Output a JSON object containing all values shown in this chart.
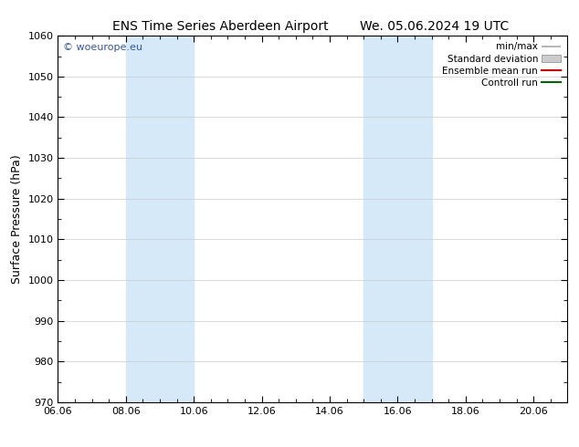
{
  "title_left": "ENS Time Series Aberdeen Airport",
  "title_right": "We. 05.06.2024 19 UTC",
  "ylabel": "Surface Pressure (hPa)",
  "ylim": [
    970,
    1060
  ],
  "yticks": [
    970,
    980,
    990,
    1000,
    1010,
    1020,
    1030,
    1040,
    1050,
    1060
  ],
  "xticks_labels": [
    "06.06",
    "08.06",
    "10.06",
    "12.06",
    "14.06",
    "16.06",
    "18.06",
    "20.06"
  ],
  "xtick_values": [
    0,
    2,
    4,
    6,
    8,
    10,
    12,
    14
  ],
  "xlim": [
    0,
    15
  ],
  "shaded_bands": [
    {
      "xstart": 2.0,
      "xend": 4.0
    },
    {
      "xstart": 9.0,
      "xend": 11.0
    }
  ],
  "shade_color": "#d6e9f8",
  "watermark_text": "© woeurope.eu",
  "watermark_color": "#3355bb",
  "legend_entries": [
    {
      "label": "min/max",
      "color": "#aaaaaa",
      "linewidth": 1.2,
      "style": "minmax"
    },
    {
      "label": "Standard deviation",
      "color": "#cccccc",
      "linewidth": 8,
      "style": "band"
    },
    {
      "label": "Ensemble mean run",
      "color": "#cc0000",
      "linewidth": 1.5,
      "style": "line"
    },
    {
      "label": "Controll run",
      "color": "#006600",
      "linewidth": 1.5,
      "style": "line"
    }
  ],
  "background_color": "#ffffff",
  "grid_color": "#cccccc",
  "title_fontsize": 10,
  "axis_label_fontsize": 9,
  "tick_fontsize": 8,
  "legend_fontsize": 7.5
}
